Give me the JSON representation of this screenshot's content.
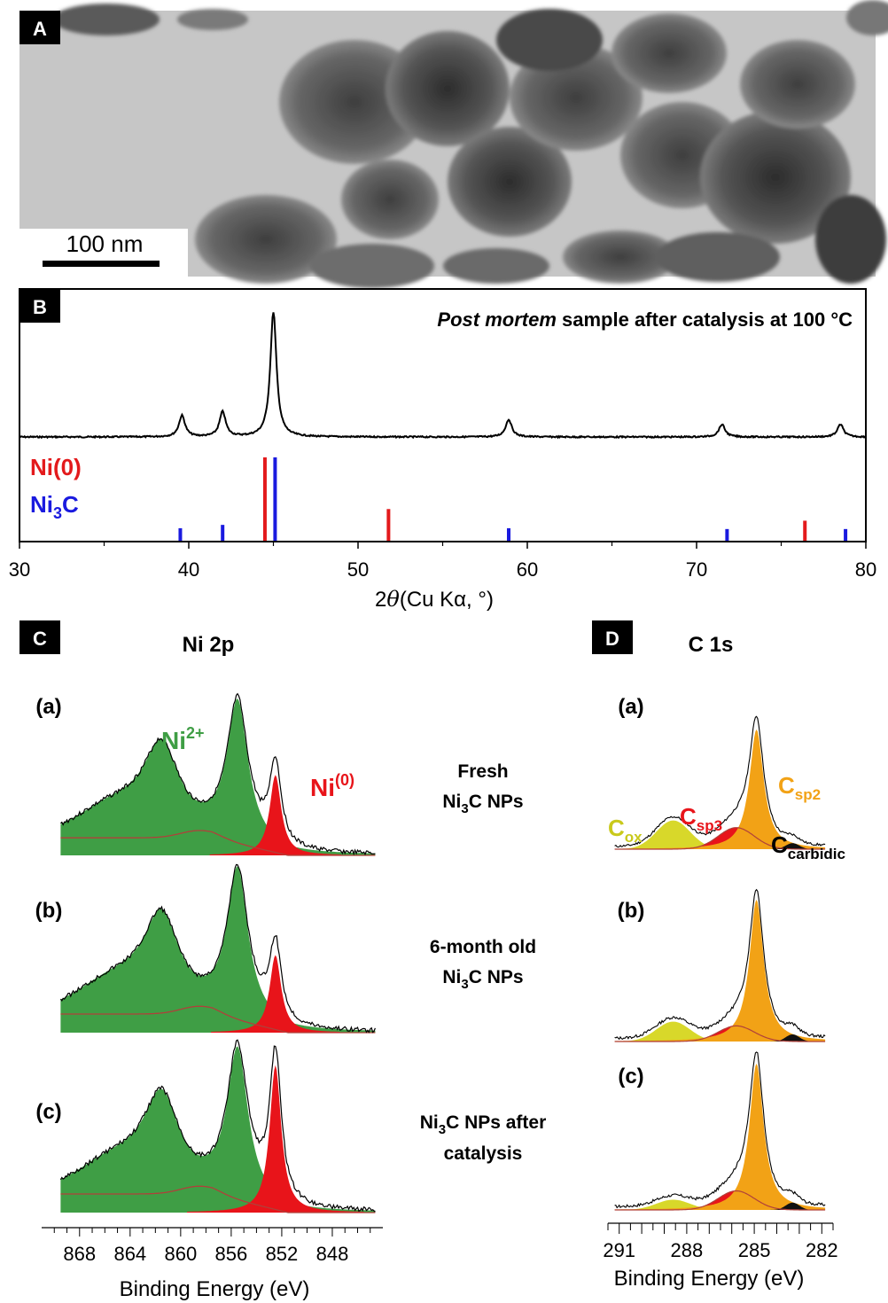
{
  "panels": {
    "a": {
      "label": "A",
      "scale_bar_text": "100 nm"
    },
    "b": {
      "label": "B",
      "title_italic": "Post mortem",
      "title_rest": " sample after catalysis at 100 °C",
      "ref_ni0": "Ni(0)",
      "ref_ni3c_main": "Ni",
      "ref_ni3c_sub": "3",
      "ref_ni3c_tail": "C",
      "xlabel_prefix": "2",
      "xlabel_theta": "θ",
      "xlabel_suffix": "(Cu Kα, °)"
    },
    "c": {
      "label": "C",
      "title": "Ni 2p",
      "row_labels": [
        "(a)",
        "(b)",
        "(c)"
      ],
      "peak_ni2_main": "Ni",
      "peak_ni2_sup": "2+",
      "peak_ni0_main": "Ni",
      "peak_ni0_sup": "(0)",
      "desc_a": [
        "Fresh",
        "Ni",
        "3",
        "C NPs"
      ],
      "desc_b": [
        "6-month old",
        "Ni",
        "3",
        "C NPs"
      ],
      "desc_c": [
        "Ni",
        "3",
        "C NPs after",
        "catalysis"
      ],
      "xlabel": "Binding Energy (eV)"
    },
    "d": {
      "label": "D",
      "title": "C 1s",
      "row_labels": [
        "(a)",
        "(b)",
        "(c)"
      ],
      "c_main": "C",
      "sub_ox": "ox",
      "sub_sp3": "sp3",
      "sub_sp2": "sp2",
      "sub_carbidic": "carbidic",
      "xlabel": "Binding Energy (eV)"
    }
  },
  "colors": {
    "ni2_green": "#3f9e45",
    "ni0_red": "#e8141a",
    "csp2_orange": "#f2a216",
    "cox_yellow": "#d8d82a",
    "ni0_ref": "#e31a1c",
    "ni3c_ref": "#1a1adf"
  },
  "chart_data": [
    {
      "type": "line",
      "panel": "B",
      "series": [
        {
          "name": "",
          "peaks_2theta": [
            39.6,
            42.0,
            45.0,
            58.9,
            71.5,
            78.5
          ],
          "relative_intensity": [
            0.17,
            0.2,
            1.0,
            0.14,
            0.1,
            0.1
          ]
        }
      ],
      "reference_lines": {
        "Ni(0)": {
          "x": [
            44.5,
            51.8,
            76.4
          ],
          "relative_intensity": [
            1.0,
            0.38,
            0.24
          ]
        },
        "Ni3C": {
          "x": [
            39.5,
            42.0,
            45.1,
            58.9,
            71.8,
            78.8
          ],
          "relative_intensity": [
            0.15,
            0.19,
            1.0,
            0.15,
            0.14,
            0.14
          ]
        }
      },
      "xlim": [
        30,
        80
      ],
      "xticks": [
        30,
        40,
        50,
        60,
        70,
        80
      ]
    },
    {
      "type": "area",
      "panel": "C",
      "xlim": [
        871,
        844
      ],
      "xticks": [
        868,
        864,
        860,
        856,
        852,
        848
      ],
      "components": [
        "Ni2+",
        "Ni(0)"
      ],
      "ni0_peak_eV": 852.5,
      "ni2_peaks_eV": [
        855.5,
        861.5
      ]
    },
    {
      "type": "area",
      "panel": "D",
      "xlim": [
        291.5,
        281.5
      ],
      "xticks": [
        291,
        288,
        285,
        282
      ],
      "components": [
        "Cox",
        "Csp3",
        "Csp2",
        "Ccarbidic"
      ],
      "peak_positions_eV": [
        288.6,
        285.8,
        284.9,
        283.3
      ]
    }
  ]
}
